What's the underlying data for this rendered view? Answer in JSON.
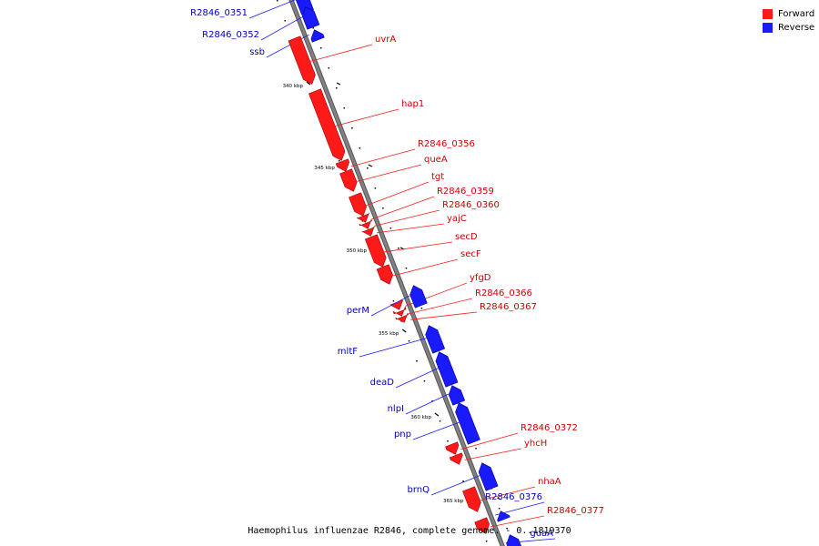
{
  "legend": {
    "forward": {
      "label": "Forward",
      "color": "#ff1a1a"
    },
    "reverse": {
      "label": "Reverse",
      "color": "#1a1aff"
    }
  },
  "caption": "Haemophilus influenzae R2846, complete genome. - 0..1819370",
  "backbone_color": "#808080",
  "ticks": [
    "340 kbp",
    "345 kbp",
    "350 kbp",
    "355 kbp",
    "360 kbp",
    "365 kbp"
  ],
  "genes": [
    {
      "name": "R2846_0351",
      "strand": "reverse"
    },
    {
      "name": "R2846_0352",
      "strand": "reverse"
    },
    {
      "name": "ssb",
      "strand": "reverse"
    },
    {
      "name": "uvrA",
      "strand": "forward"
    },
    {
      "name": "hap1",
      "strand": "forward"
    },
    {
      "name": "R2846_0356",
      "strand": "forward"
    },
    {
      "name": "queA",
      "strand": "forward"
    },
    {
      "name": "tgt",
      "strand": "forward"
    },
    {
      "name": "R2846_0359",
      "strand": "forward"
    },
    {
      "name": "R2846_0360",
      "strand": "forward"
    },
    {
      "name": "yajC",
      "strand": "forward"
    },
    {
      "name": "secD",
      "strand": "forward"
    },
    {
      "name": "secF",
      "strand": "forward"
    },
    {
      "name": "yfgD",
      "strand": "forward"
    },
    {
      "name": "R2846_0366",
      "strand": "forward"
    },
    {
      "name": "R2846_0367",
      "strand": "forward"
    },
    {
      "name": "perM",
      "strand": "reverse"
    },
    {
      "name": "mltF",
      "strand": "reverse"
    },
    {
      "name": "deaD",
      "strand": "reverse"
    },
    {
      "name": "nlpI",
      "strand": "reverse"
    },
    {
      "name": "pnp",
      "strand": "reverse"
    },
    {
      "name": "R2846_0372",
      "strand": "forward"
    },
    {
      "name": "yhcH",
      "strand": "forward"
    },
    {
      "name": "brnQ",
      "strand": "reverse"
    },
    {
      "name": "nhaA",
      "strand": "forward"
    },
    {
      "name": "R2846_0376",
      "strand": "reverse"
    },
    {
      "name": "R2846_0377",
      "strand": "forward"
    },
    {
      "name": "guaA",
      "strand": "reverse"
    }
  ]
}
